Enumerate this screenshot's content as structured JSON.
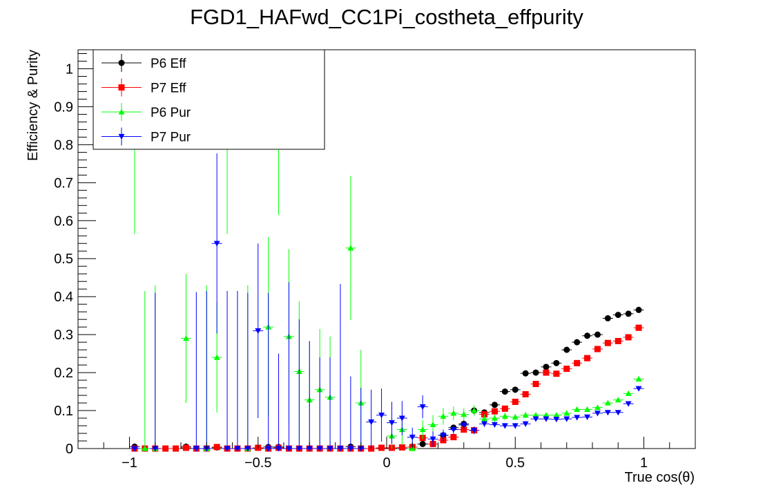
{
  "chart_data": {
    "type": "scatter",
    "title": "FGD1_HAFwd_CC1Pi_costheta_effpurity",
    "xlabel": "True cos(θ)",
    "ylabel": "Efficiency & Purity",
    "xlim": [
      -1.2,
      1.2
    ],
    "ylim": [
      0,
      1.05
    ],
    "xticks": [
      -1,
      -0.5,
      0,
      0.5,
      1
    ],
    "xtick_labels": [
      "−1",
      "−0.5",
      "0",
      "0.5",
      "1"
    ],
    "yticks": [
      0,
      0.1,
      0.2,
      0.3,
      0.4,
      0.5,
      0.6,
      0.7,
      0.8,
      0.9,
      1
    ],
    "ytick_labels": [
      "0",
      "0.1",
      "0.2",
      "0.3",
      "0.4",
      "0.5",
      "0.6",
      "0.7",
      "0.8",
      "0.9",
      "1"
    ],
    "grid": false,
    "legend_position": "top-left",
    "x_half_width": 0.02,
    "series": [
      {
        "name": "P6 Eff",
        "color": "#000000",
        "marker": "circle",
        "points": [
          [
            -0.98,
            0.005,
            0.005
          ],
          [
            -0.78,
            0.005,
            0.004
          ],
          [
            -0.66,
            0.003,
            0.003
          ],
          [
            -0.46,
            0.004,
            0.004
          ],
          [
            -0.42,
            0.004,
            0.004
          ],
          [
            -0.14,
            0.005,
            0.005
          ],
          [
            0.14,
            0.012,
            0.004
          ],
          [
            0.22,
            0.035,
            0.006
          ],
          [
            0.26,
            0.055,
            0.007
          ],
          [
            0.3,
            0.065,
            0.007
          ],
          [
            0.34,
            0.1,
            0.007
          ],
          [
            0.38,
            0.095,
            0.007
          ],
          [
            0.42,
            0.115,
            0.007
          ],
          [
            0.46,
            0.15,
            0.008
          ],
          [
            0.5,
            0.155,
            0.008
          ],
          [
            0.54,
            0.198,
            0.008
          ],
          [
            0.58,
            0.2,
            0.008
          ],
          [
            0.62,
            0.215,
            0.008
          ],
          [
            0.66,
            0.225,
            0.008
          ],
          [
            0.7,
            0.26,
            0.008
          ],
          [
            0.74,
            0.28,
            0.008
          ],
          [
            0.78,
            0.297,
            0.008
          ],
          [
            0.82,
            0.3,
            0.007
          ],
          [
            0.86,
            0.343,
            0.007
          ],
          [
            0.9,
            0.352,
            0.007
          ],
          [
            0.94,
            0.355,
            0.006
          ],
          [
            0.98,
            0.365,
            0.005
          ]
        ]
      },
      {
        "name": "P7 Eff",
        "color": "#ff0000",
        "marker": "square",
        "points": [
          [
            -0.98,
            0.0,
            0.002
          ],
          [
            -0.94,
            0.0,
            0.002
          ],
          [
            -0.9,
            0.0,
            0.002
          ],
          [
            -0.86,
            0.0,
            0.002
          ],
          [
            -0.82,
            0.0,
            0.002
          ],
          [
            -0.78,
            0.002,
            0.002
          ],
          [
            -0.74,
            0.0,
            0.002
          ],
          [
            -0.7,
            0.0,
            0.002
          ],
          [
            -0.66,
            0.004,
            0.003
          ],
          [
            -0.62,
            0.0,
            0.002
          ],
          [
            -0.58,
            0.0,
            0.002
          ],
          [
            -0.54,
            0.0,
            0.002
          ],
          [
            -0.5,
            0.002,
            0.002
          ],
          [
            -0.46,
            0.0,
            0.002
          ],
          [
            -0.42,
            0.002,
            0.002
          ],
          [
            -0.38,
            0.0,
            0.002
          ],
          [
            -0.34,
            0.0,
            0.002
          ],
          [
            -0.3,
            0.0,
            0.002
          ],
          [
            -0.26,
            0.0,
            0.002
          ],
          [
            -0.22,
            0.0,
            0.002
          ],
          [
            -0.18,
            0.0,
            0.002
          ],
          [
            -0.14,
            0.0,
            0.002
          ],
          [
            -0.1,
            0.0,
            0.002
          ],
          [
            -0.06,
            0.0,
            0.002
          ],
          [
            -0.02,
            0.002,
            0.002
          ],
          [
            0.02,
            0.002,
            0.002
          ],
          [
            0.06,
            0.003,
            0.002
          ],
          [
            0.1,
            0.004,
            0.003
          ],
          [
            0.14,
            0.028,
            0.004
          ],
          [
            0.18,
            0.012,
            0.004
          ],
          [
            0.22,
            0.022,
            0.005
          ],
          [
            0.26,
            0.03,
            0.005
          ],
          [
            0.3,
            0.05,
            0.006
          ],
          [
            0.34,
            0.048,
            0.006
          ],
          [
            0.38,
            0.09,
            0.007
          ],
          [
            0.42,
            0.098,
            0.007
          ],
          [
            0.46,
            0.105,
            0.007
          ],
          [
            0.5,
            0.123,
            0.007
          ],
          [
            0.54,
            0.143,
            0.008
          ],
          [
            0.58,
            0.17,
            0.008
          ],
          [
            0.62,
            0.2,
            0.008
          ],
          [
            0.66,
            0.197,
            0.008
          ],
          [
            0.7,
            0.21,
            0.008
          ],
          [
            0.74,
            0.225,
            0.008
          ],
          [
            0.78,
            0.238,
            0.008
          ],
          [
            0.82,
            0.262,
            0.007
          ],
          [
            0.86,
            0.278,
            0.007
          ],
          [
            0.9,
            0.283,
            0.007
          ],
          [
            0.94,
            0.293,
            0.006
          ],
          [
            0.98,
            0.318,
            0.005
          ]
        ]
      },
      {
        "name": "P6 Pur",
        "color": "#00ff00",
        "marker": "triangle-up",
        "points": [
          [
            -0.98,
            0.82,
            0.255
          ],
          [
            -0.94,
            0.0,
            0.415
          ],
          [
            -0.9,
            0.0,
            0.43
          ],
          [
            -0.78,
            0.29,
            0.17
          ],
          [
            -0.7,
            0.0,
            0.43
          ],
          [
            -0.66,
            0.24,
            0.145
          ],
          [
            -0.62,
            0.82,
            0.255
          ],
          [
            -0.54,
            0.0,
            0.43
          ],
          [
            -0.42,
            0.82,
            0.205
          ],
          [
            -0.46,
            0.32,
            0.237
          ],
          [
            -0.38,
            0.295,
            0.23
          ],
          [
            -0.34,
            0.203,
            0.185
          ],
          [
            -0.3,
            0.128,
            0.155
          ],
          [
            -0.26,
            0.155,
            0.16
          ],
          [
            -0.22,
            0.135,
            0.16
          ],
          [
            -0.14,
            0.528,
            0.19
          ],
          [
            -0.1,
            0.12,
            0.14
          ],
          [
            0.02,
            0.033,
            0.05
          ],
          [
            0.06,
            0.05,
            0.04
          ],
          [
            0.1,
            0.0,
            0.02
          ],
          [
            0.14,
            0.05,
            0.025
          ],
          [
            0.18,
            0.063,
            0.025
          ],
          [
            0.22,
            0.085,
            0.022
          ],
          [
            0.26,
            0.093,
            0.018
          ],
          [
            0.3,
            0.09,
            0.016
          ],
          [
            0.34,
            0.1,
            0.014
          ],
          [
            0.38,
            0.078,
            0.012
          ],
          [
            0.42,
            0.08,
            0.01
          ],
          [
            0.46,
            0.085,
            0.01
          ],
          [
            0.5,
            0.083,
            0.008
          ],
          [
            0.54,
            0.088,
            0.008
          ],
          [
            0.58,
            0.088,
            0.007
          ],
          [
            0.62,
            0.088,
            0.007
          ],
          [
            0.66,
            0.088,
            0.007
          ],
          [
            0.7,
            0.093,
            0.007
          ],
          [
            0.74,
            0.103,
            0.007
          ],
          [
            0.78,
            0.103,
            0.007
          ],
          [
            0.82,
            0.108,
            0.006
          ],
          [
            0.86,
            0.12,
            0.006
          ],
          [
            0.9,
            0.128,
            0.006
          ],
          [
            0.94,
            0.145,
            0.005
          ],
          [
            0.98,
            0.183,
            0.005
          ]
        ]
      },
      {
        "name": "P7 Pur",
        "color": "#0000ff",
        "marker": "triangle-down",
        "points": [
          [
            -0.98,
            0.0,
            0.002
          ],
          [
            -0.9,
            0.0,
            0.41
          ],
          [
            -0.74,
            0.0,
            0.412
          ],
          [
            -0.7,
            0.0,
            0.415
          ],
          [
            -0.66,
            0.54,
            0.237
          ],
          [
            -0.62,
            0.0,
            0.415
          ],
          [
            -0.58,
            0.0,
            0.415
          ],
          [
            -0.54,
            0.0,
            0.41
          ],
          [
            -0.5,
            0.31,
            0.23
          ],
          [
            -0.46,
            0.0,
            0.41
          ],
          [
            -0.42,
            0.0,
            0.25
          ],
          [
            -0.38,
            0.0,
            0.438
          ],
          [
            -0.34,
            0.0,
            0.34
          ],
          [
            -0.3,
            0.0,
            0.283
          ],
          [
            -0.26,
            0.0,
            0.24
          ],
          [
            -0.22,
            0.0,
            0.24
          ],
          [
            -0.18,
            0.0,
            0.433
          ],
          [
            -0.14,
            0.0,
            0.19
          ],
          [
            -0.1,
            0.0,
            0.16
          ],
          [
            -0.06,
            0.07,
            0.085
          ],
          [
            -0.02,
            0.088,
            0.07
          ],
          [
            0.02,
            0.068,
            0.055
          ],
          [
            0.06,
            0.08,
            0.045
          ],
          [
            0.1,
            0.03,
            0.025
          ],
          [
            0.14,
            0.11,
            0.03
          ],
          [
            0.18,
            0.025,
            0.02
          ],
          [
            0.22,
            0.035,
            0.015
          ],
          [
            0.26,
            0.05,
            0.013
          ],
          [
            0.3,
            0.062,
            0.012
          ],
          [
            0.34,
            0.048,
            0.01
          ],
          [
            0.38,
            0.065,
            0.008
          ],
          [
            0.42,
            0.063,
            0.007
          ],
          [
            0.46,
            0.06,
            0.007
          ],
          [
            0.5,
            0.06,
            0.007
          ],
          [
            0.54,
            0.065,
            0.007
          ],
          [
            0.58,
            0.078,
            0.006
          ],
          [
            0.62,
            0.078,
            0.006
          ],
          [
            0.66,
            0.077,
            0.006
          ],
          [
            0.7,
            0.078,
            0.006
          ],
          [
            0.74,
            0.082,
            0.006
          ],
          [
            0.78,
            0.083,
            0.006
          ],
          [
            0.82,
            0.093,
            0.006
          ],
          [
            0.86,
            0.095,
            0.005
          ],
          [
            0.9,
            0.095,
            0.005
          ],
          [
            0.94,
            0.118,
            0.005
          ],
          [
            0.98,
            0.158,
            0.005
          ]
        ]
      }
    ]
  }
}
